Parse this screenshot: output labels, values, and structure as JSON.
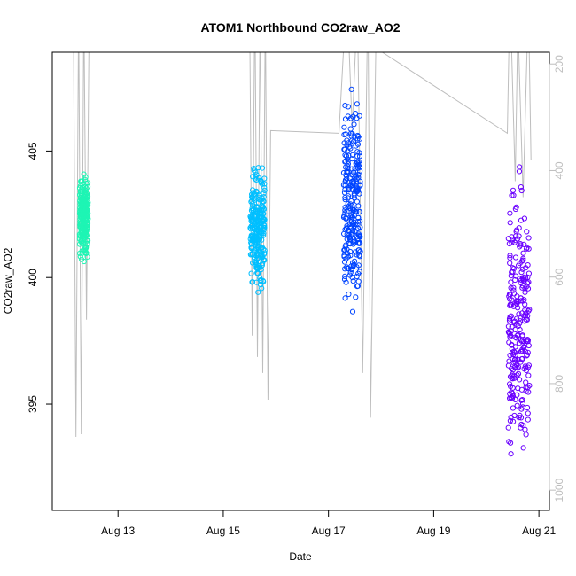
{
  "chart_data": {
    "type": "scatter",
    "title": "ATOM1 Northbound CO2raw_AO2",
    "xlabel": "Date",
    "ylabel": "CO2raw_AO2",
    "x_ticks": [
      {
        "day": 13,
        "label": "Aug 13"
      },
      {
        "day": 15,
        "label": "Aug 15"
      },
      {
        "day": 17,
        "label": "Aug 17"
      },
      {
        "day": 19,
        "label": "Aug 19"
      },
      {
        "day": 21,
        "label": "Aug 21"
      }
    ],
    "xlim_days": [
      11.75,
      21.2
    ],
    "ylim": [
      390.8,
      408.9
    ],
    "y_ticks": [
      395,
      400,
      405
    ],
    "y2_ticks": [
      200,
      400,
      600,
      800,
      1000
    ],
    "y2lim": [
      178,
      1038
    ],
    "y2_color": "#bebebe",
    "line_color": "#bebebe",
    "grid": false,
    "series": [
      {
        "color": "#1ef5b4",
        "center": 12.35,
        "spread": 0.08,
        "y_range": [
          400.3,
          404.5
        ]
      },
      {
        "color": "#00bfff",
        "center": 15.65,
        "spread": 0.14,
        "y_range": [
          399.0,
          405.0
        ]
      },
      {
        "color": "#0044ff",
        "center": 17.45,
        "spread": 0.16,
        "y_range": [
          397.1,
          408.2
        ]
      },
      {
        "color": "#6a00ff",
        "center": 20.62,
        "spread": 0.2,
        "y_range": [
          391.0,
          405.3
        ]
      }
    ],
    "y2_line": {
      "points": [
        [
          12.15,
          70
        ],
        [
          12.2,
          900
        ],
        [
          12.25,
          100
        ],
        [
          12.3,
          895
        ],
        [
          12.35,
          80
        ],
        [
          12.4,
          680
        ],
        [
          12.45,
          120
        ],
        [
          15.5,
          80
        ],
        [
          15.55,
          710
        ],
        [
          15.6,
          60
        ],
        [
          15.65,
          750
        ],
        [
          15.7,
          100
        ],
        [
          15.75,
          780
        ],
        [
          15.8,
          90
        ],
        [
          15.85,
          830
        ],
        [
          15.9,
          325
        ],
        [
          17.2,
          330
        ],
        [
          17.35,
          60
        ],
        [
          17.45,
          320
        ],
        [
          17.55,
          90
        ],
        [
          17.65,
          780
        ],
        [
          17.75,
          60
        ],
        [
          17.8,
          864
        ],
        [
          17.9,
          170
        ],
        [
          20.4,
          330
        ],
        [
          20.45,
          60
        ],
        [
          20.55,
          420
        ],
        [
          20.6,
          120
        ],
        [
          20.7,
          450
        ],
        [
          20.8,
          80
        ],
        [
          20.85,
          380
        ]
      ]
    }
  }
}
